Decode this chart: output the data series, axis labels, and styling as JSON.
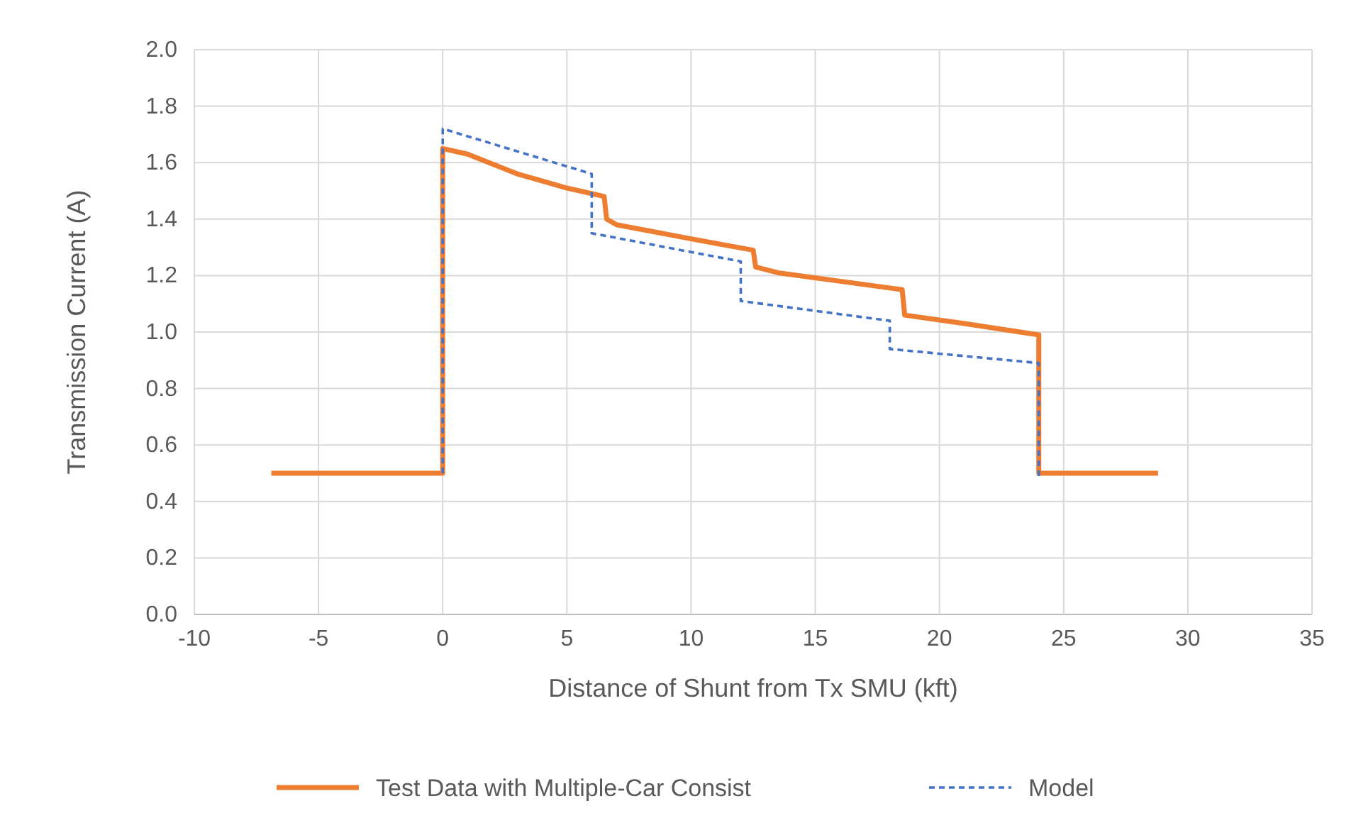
{
  "chart_data": {
    "type": "line",
    "xlabel": "Distance of Shunt from Tx SMU (kft)",
    "ylabel": "Transmission Current (A)",
    "xlim": [
      -10,
      35
    ],
    "xticks": [
      -10,
      -5,
      0,
      5,
      10,
      15,
      20,
      25,
      30,
      35
    ],
    "ylim": [
      0,
      2
    ],
    "yticks": [
      {
        "value": 0,
        "label": "0.0"
      },
      {
        "value": 0.2,
        "label": "0.2"
      },
      {
        "value": 0.4,
        "label": "0.4"
      },
      {
        "value": 0.6,
        "label": "0.6"
      },
      {
        "value": 0.8,
        "label": "0.8"
      },
      {
        "value": 1,
        "label": "1.0"
      },
      {
        "value": 1.2,
        "label": "1.2"
      },
      {
        "value": 1.4,
        "label": "1.4"
      },
      {
        "value": 1.6,
        "label": "1.6"
      },
      {
        "value": 1.8,
        "label": "1.8"
      },
      {
        "value": 2,
        "label": "2.0"
      }
    ],
    "grid": true,
    "legend": "bottom",
    "series": [
      {
        "name": "Test Data with Multiple-Car Consist",
        "color": "#ed7d31",
        "line_style": "solid",
        "x": [
          -6.9,
          0,
          0,
          1,
          3,
          5,
          6.5,
          6.6,
          7,
          10,
          12.5,
          12.6,
          13.5,
          16,
          18.5,
          18.6,
          21,
          24,
          24,
          26,
          28.8
        ],
        "values": [
          0.5,
          0.5,
          1.65,
          1.63,
          1.56,
          1.51,
          1.48,
          1.4,
          1.38,
          1.33,
          1.29,
          1.23,
          1.21,
          1.18,
          1.15,
          1.06,
          1.03,
          0.99,
          0.5,
          0.5,
          0.5
        ]
      },
      {
        "name": "Model",
        "color": "#4472c4",
        "line_style": "dashed",
        "x": [
          0,
          0,
          6,
          6,
          12,
          12,
          18,
          18,
          24,
          24
        ],
        "values": [
          0.5,
          1.72,
          1.56,
          1.35,
          1.25,
          1.11,
          1.04,
          0.94,
          0.89,
          0.49
        ]
      }
    ]
  }
}
